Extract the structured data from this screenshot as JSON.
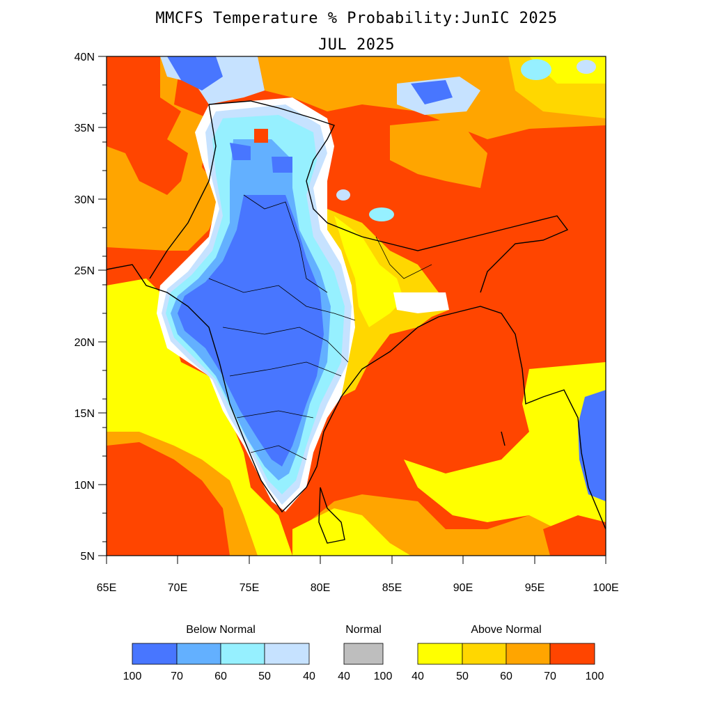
{
  "title_line1": "MMCFS Temperature % Probability:JunIC 2025",
  "title_line2": "JUL 2025",
  "lat_labels": [
    "40N",
    "35N",
    "30N",
    "25N",
    "20N",
    "15N",
    "10N",
    "5N"
  ],
  "lon_labels": [
    "65E",
    "70E",
    "75E",
    "80E",
    "85E",
    "90E",
    "95E",
    "100E"
  ],
  "colors": {
    "below_100_70": "#4876ff",
    "below_70_60": "#63b0ff",
    "below_60_50": "#96f0ff",
    "below_50_40": "#c6e2ff",
    "normal": "#bebebe",
    "above_40_50": "#ffff00",
    "above_50_60": "#ffd700",
    "above_60_70": "#ffa500",
    "above_70_100": "#ff4500"
  },
  "legend": {
    "below": {
      "title": "Below Normal",
      "ticks": [
        "100",
        "70",
        "60",
        "50",
        "40"
      ]
    },
    "normal": {
      "title": "Normal",
      "ticks": [
        "40",
        "100"
      ]
    },
    "above": {
      "title": "Above Normal",
      "ticks": [
        "40",
        "50",
        "60",
        "70",
        "100"
      ]
    }
  }
}
